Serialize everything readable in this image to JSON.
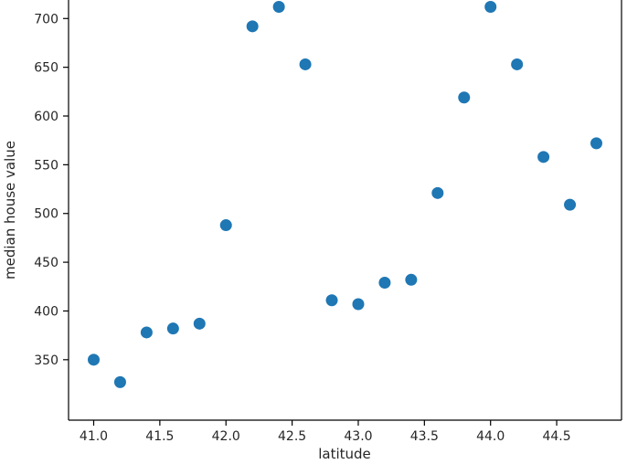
{
  "chart_data": {
    "type": "scatter",
    "title": "",
    "xlabel": "latitude",
    "ylabel": "median house value",
    "x": [
      41.0,
      41.2,
      41.4,
      41.6,
      41.8,
      42.0,
      42.2,
      42.4,
      42.6,
      42.8,
      43.0,
      43.2,
      43.4,
      43.6,
      43.8,
      44.0,
      44.2,
      44.4,
      44.6,
      44.8
    ],
    "y": [
      350,
      327,
      378,
      382,
      387,
      488,
      692,
      712,
      653,
      411,
      407,
      429,
      432,
      521,
      619,
      712,
      653,
      558,
      509,
      572
    ],
    "xlim": [
      40.81,
      44.99
    ],
    "ylim": [
      288,
      719
    ],
    "xticks": [
      41.0,
      41.5,
      42.0,
      42.5,
      43.0,
      43.5,
      44.0,
      44.5
    ],
    "xtick_labels": [
      "41.0",
      "41.5",
      "42.0",
      "42.5",
      "43.0",
      "43.5",
      "44.0",
      "44.5"
    ],
    "yticks": [
      350,
      400,
      450,
      500,
      550,
      600,
      650,
      700
    ],
    "ytick_labels": [
      "350",
      "400",
      "450",
      "500",
      "550",
      "600",
      "650",
      "700"
    ],
    "grid": false,
    "legend_position": "none",
    "marker_color": "#1f77b4",
    "marker_radius": 6.5,
    "spine_color": "#000000"
  }
}
